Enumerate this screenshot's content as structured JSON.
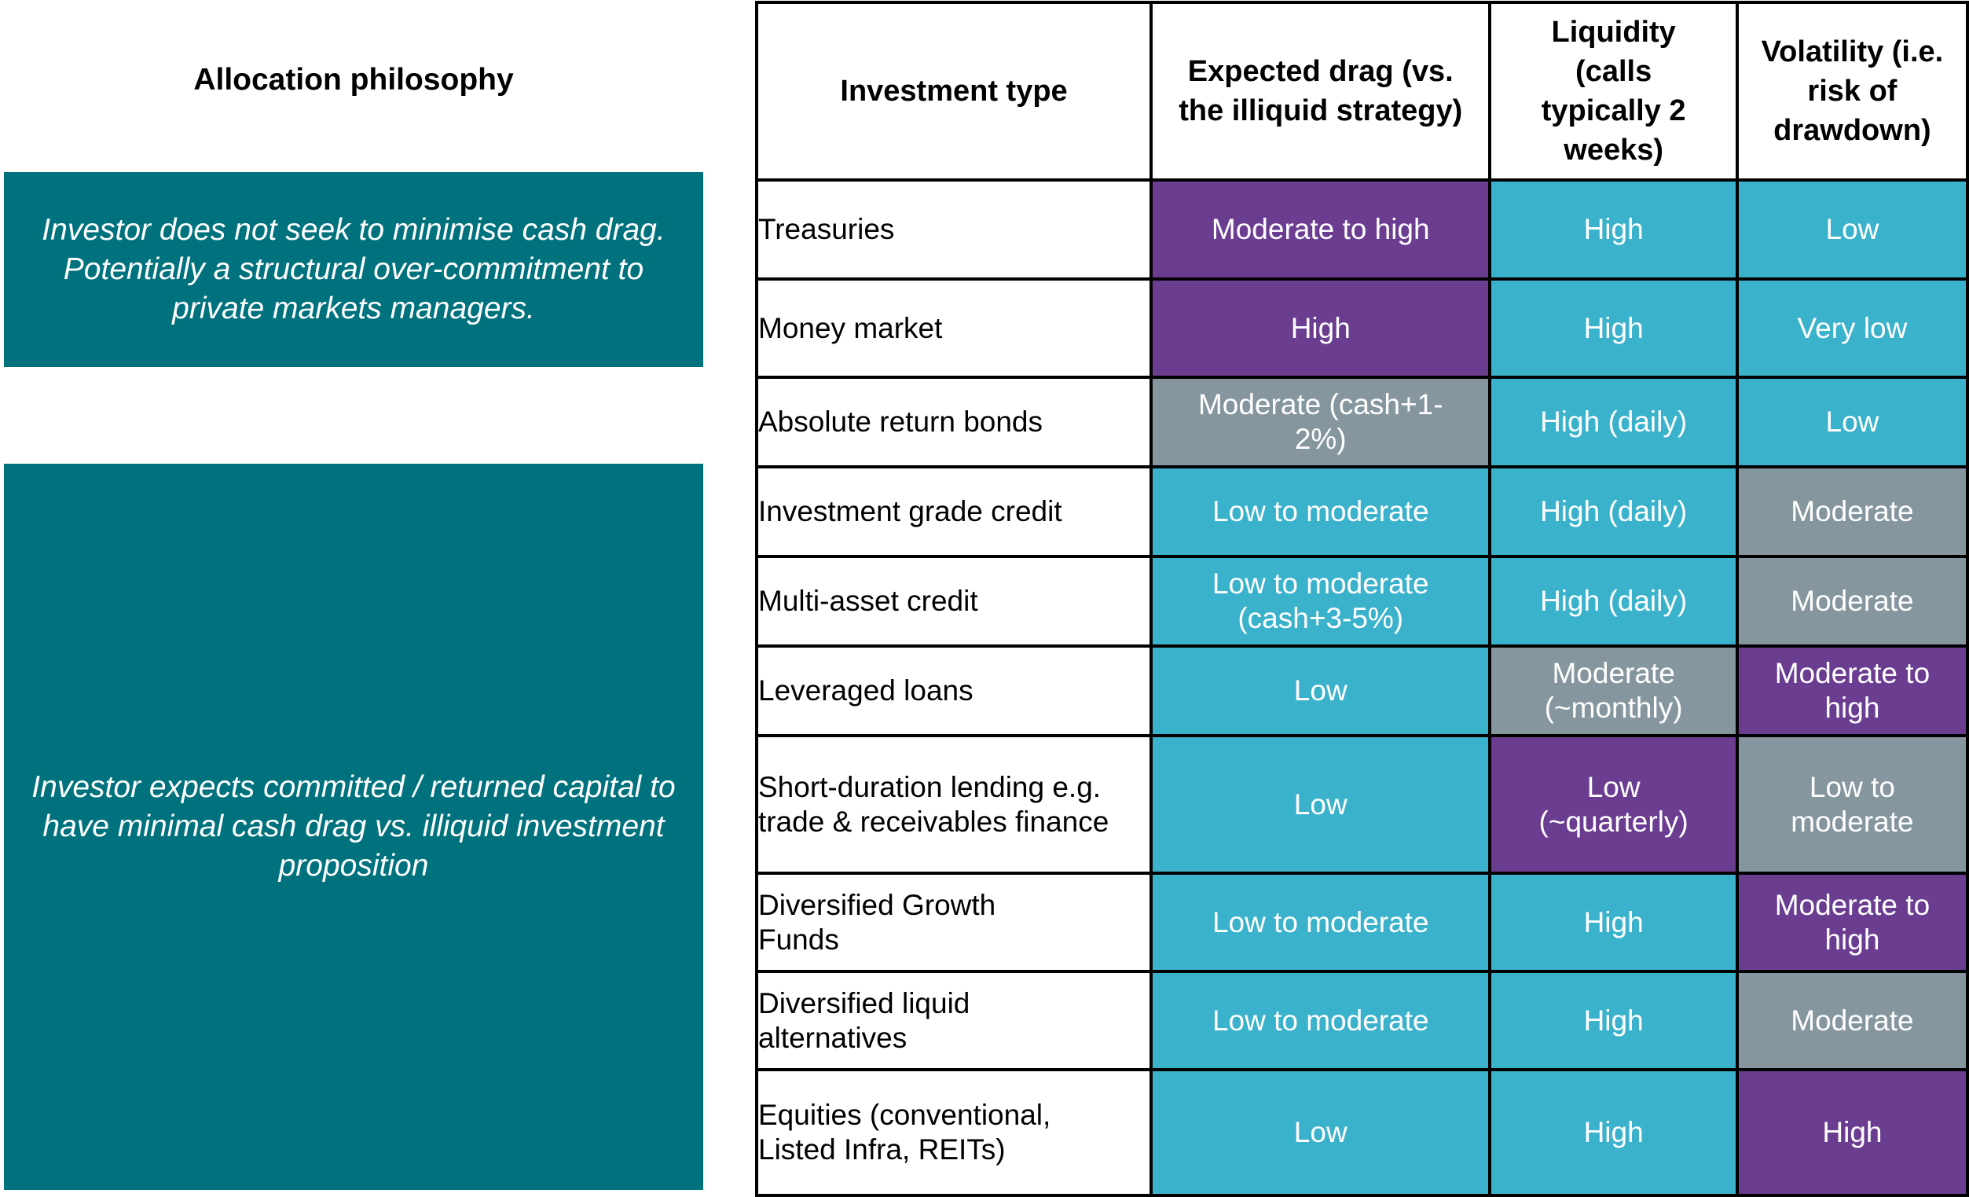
{
  "allocation": {
    "title": "Allocation philosophy",
    "box1": "Investor does not seek to minimise cash drag. Potentially a structural over-commitment to private markets managers.",
    "box2": "Investor expects committed / returned capital to have minimal cash drag vs. illiquid investment proposition"
  },
  "table": {
    "headers": [
      "Investment type",
      "Expected drag (vs. the illiquid strategy)",
      "Liquidity (calls typically 2 weeks)",
      "Volatility (i.e. risk of drawdown)"
    ],
    "rows": [
      {
        "type": "Treasuries",
        "drag": "Moderate to high",
        "liquidity": "High",
        "volatility": "Low"
      },
      {
        "type": "Money market",
        "drag": "High",
        "liquidity": "High",
        "volatility": "Very low"
      },
      {
        "type": "Absolute return bonds",
        "drag": "Moderate (cash+1-2%)",
        "liquidity": "High (daily)",
        "volatility": "Low"
      },
      {
        "type": "Investment grade credit",
        "drag": "Low to moderate",
        "liquidity": "High (daily)",
        "volatility": "Moderate"
      },
      {
        "type": "Multi-asset credit",
        "drag": "Low to moderate (cash+3-5%)",
        "liquidity": "High (daily)",
        "volatility": "Moderate"
      },
      {
        "type": "Leveraged loans",
        "drag": "Low",
        "liquidity": "Moderate (~monthly)",
        "volatility": "Moderate to high"
      },
      {
        "type": "Short-duration lending e.g. trade & receivables finance",
        "drag": "Low",
        "liquidity": "Low (~quarterly)",
        "volatility": "Low to moderate"
      },
      {
        "type": "Diversified Growth Funds",
        "drag": "Low to moderate",
        "liquidity": "High",
        "volatility": "Moderate to high"
      },
      {
        "type": "Diversified liquid alternatives",
        "drag": "Low to moderate",
        "liquidity": "High",
        "volatility": "Moderate"
      },
      {
        "type": "Equities (conventional, Listed Infra, REITs)",
        "drag": "Low",
        "liquidity": "High",
        "volatility": "High"
      }
    ]
  },
  "colors": {
    "phil_box": "#00727d",
    "purple": "#6b3d91",
    "teal": "#3bb2cb",
    "grey": "#86969f"
  }
}
